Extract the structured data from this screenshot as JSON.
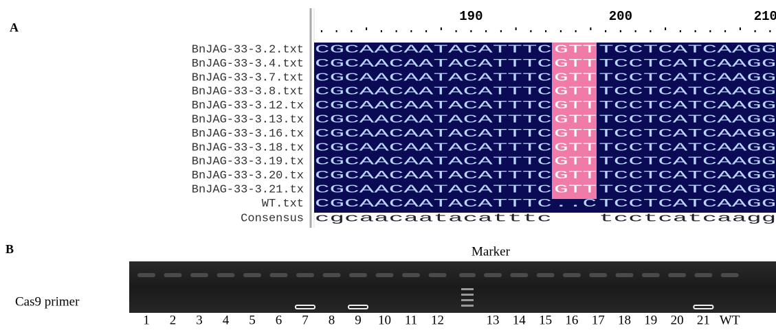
{
  "panel_a": {
    "label": "A",
    "ruler": [
      "190",
      "200",
      "210"
    ],
    "rows": [
      {
        "name": "BnJAG-33-3.2.txt",
        "left": "CGCAACAATACATTTC",
        "mid": "GTT",
        "right": "TCCTCATCAAGG"
      },
      {
        "name": "BnJAG-33-3.4.txt",
        "left": "CGCAACAATACATTTC",
        "mid": "GTT",
        "right": "TCCTCATCAAGG"
      },
      {
        "name": "BnJAG-33-3.7.txt",
        "left": "CGCAACAATACATTTC",
        "mid": "GTT",
        "right": "TCCTCATCAAGG"
      },
      {
        "name": "BnJAG-33-3.8.txt",
        "left": "CGCAACAATACATTTC",
        "mid": "GTT",
        "right": "TCCTCATCAAGG"
      },
      {
        "name": "BnJAG-33-3.12.tx",
        "left": "CGCAACAATACATTTC",
        "mid": "GTT",
        "right": "TCCTCATCAAGG"
      },
      {
        "name": "BnJAG-33-3.13.tx",
        "left": "CGCAACAATACATTTC",
        "mid": "GTT",
        "right": "TCCTCATCAAGG"
      },
      {
        "name": "BnJAG-33-3.16.tx",
        "left": "CGCAACAATACATTTC",
        "mid": "GTT",
        "right": "TCCTCATCAAGG"
      },
      {
        "name": "BnJAG-33-3.18.tx",
        "left": "CGCAACAATACATTTC",
        "mid": "GTT",
        "right": "TCCTCATCAAGG"
      },
      {
        "name": "BnJAG-33-3.19.tx",
        "left": "CGCAACAATACATTTC",
        "mid": "GTT",
        "right": "TCCTCATCAAGG"
      },
      {
        "name": "BnJAG-33-3.20.tx",
        "left": "CGCAACAATACATTTC",
        "mid": "GTT",
        "right": "TCCTCATCAAGG"
      },
      {
        "name": "BnJAG-33-3.21.tx",
        "left": "CGCAACAATACATTTC",
        "mid": "GTT",
        "right": "TCCTCATCAAGG"
      },
      {
        "name": "WT.txt",
        "left": "CGCAACAATACATTTC",
        "mid": "..C",
        "right": "TCCTCATCAAGG"
      },
      {
        "name": "Consensus",
        "left": "cgcaacaatacatttc",
        "right": "tcctcatcaagg"
      }
    ]
  },
  "panel_b": {
    "label": "B",
    "marker": "Marker",
    "row_label": "Cas9 primer",
    "lanes": [
      "1",
      "2",
      "3",
      "4",
      "5",
      "6",
      "7",
      "8",
      "9",
      "10",
      "11",
      "12",
      "13",
      "14",
      "15",
      "16",
      "17",
      "18",
      "19",
      "20",
      "21",
      "WT"
    ]
  }
}
